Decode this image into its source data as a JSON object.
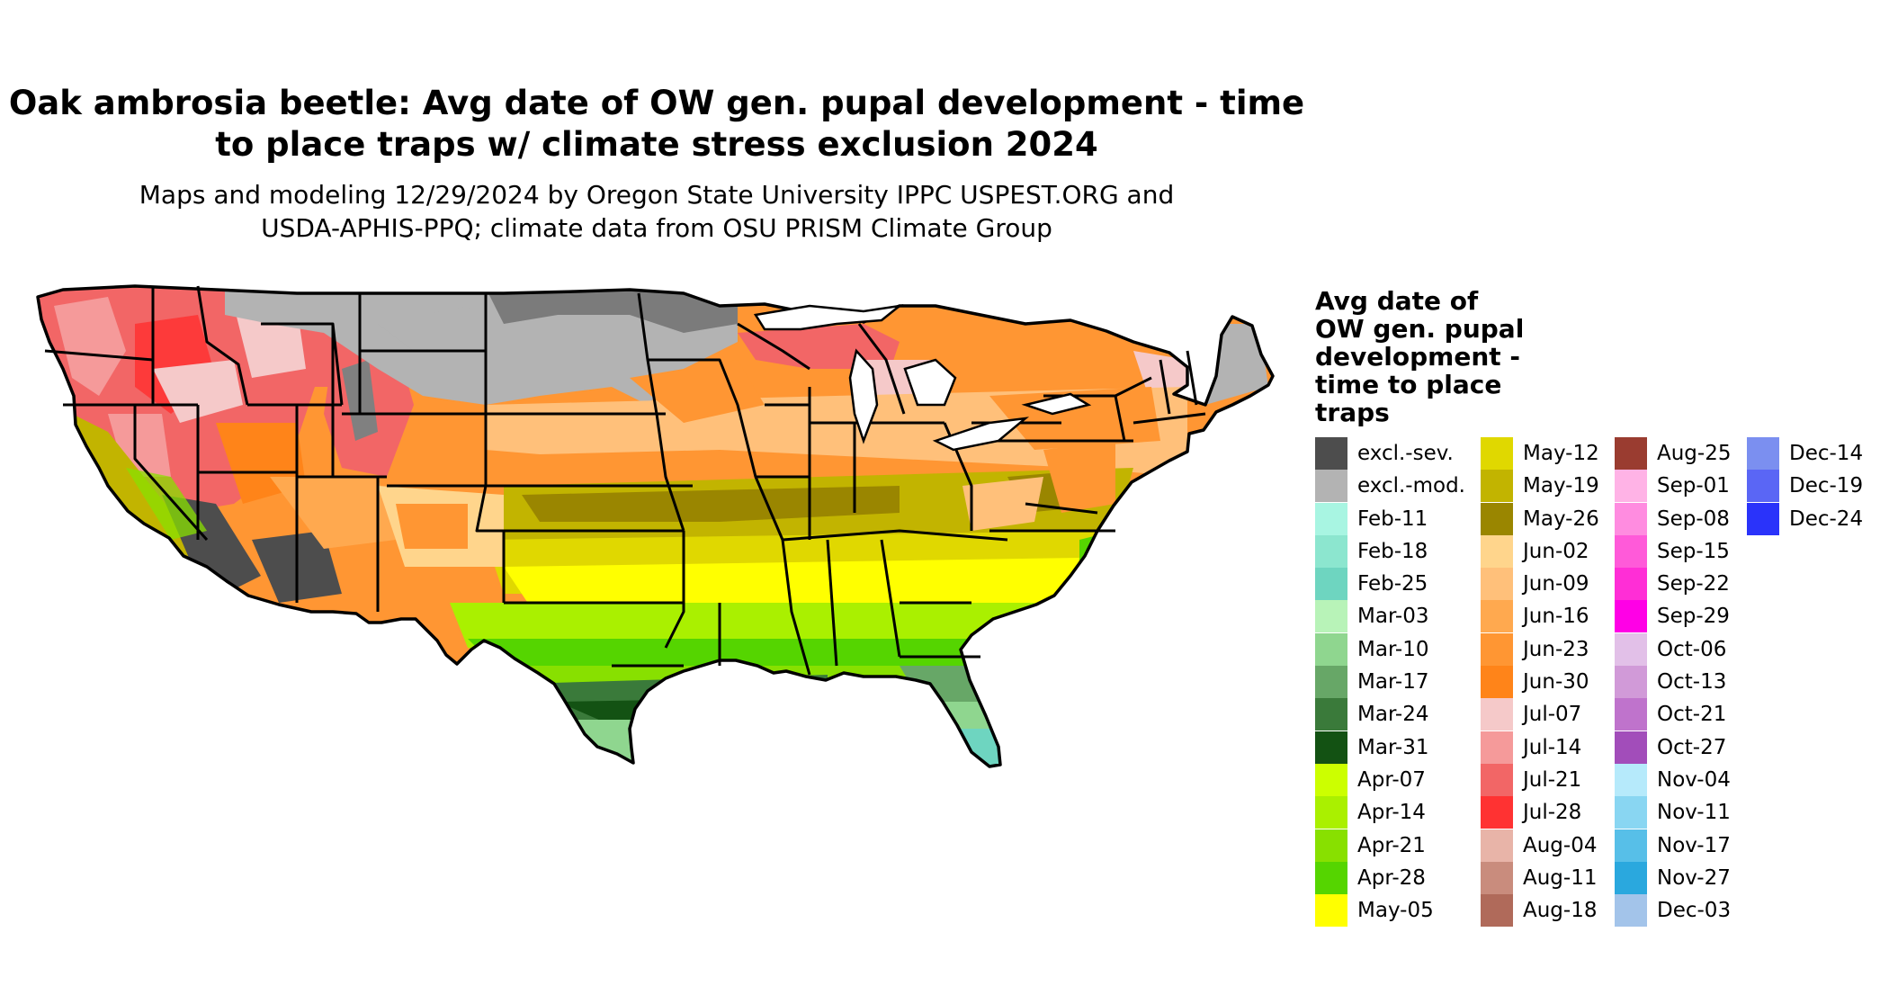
{
  "title_line1": "Oak ambrosia beetle: Avg date of OW gen. pupal development - time",
  "title_line2": "to place traps w/ climate stress exclusion 2024",
  "subtitle_line1": "Maps and modeling 12/29/2024 by Oregon State University IPPC USPEST.ORG and",
  "subtitle_line2": "USDA-APHIS-PPQ; climate data from OSU PRISM Climate Group",
  "legend": {
    "title_lines": [
      "Avg date of",
      "OW gen. pupal",
      "development -",
      "time to place",
      "traps"
    ],
    "columns": [
      [
        {
          "label": "excl.-sev.",
          "color": "#4d4d4d"
        },
        {
          "label": "excl.-mod.",
          "color": "#b3b3b3"
        },
        {
          "label": "Feb-11",
          "color": "#a8f5e2"
        },
        {
          "label": "Feb-18",
          "color": "#8ce6cf"
        },
        {
          "label": "Feb-25",
          "color": "#6ed5c0"
        },
        {
          "label": "Mar-03",
          "color": "#b8f3b8"
        },
        {
          "label": "Mar-10",
          "color": "#8fd68f"
        },
        {
          "label": "Mar-17",
          "color": "#67a767"
        },
        {
          "label": "Mar-24",
          "color": "#3a7a3a"
        },
        {
          "label": "Mar-31",
          "color": "#135213"
        },
        {
          "label": "Apr-07",
          "color": "#ccff00"
        },
        {
          "label": "Apr-14",
          "color": "#aaf000"
        },
        {
          "label": "Apr-21",
          "color": "#88e000"
        },
        {
          "label": "Apr-28",
          "color": "#55d500"
        },
        {
          "label": "May-05",
          "color": "#ffff00"
        }
      ],
      [
        {
          "label": "May-12",
          "color": "#e0d800"
        },
        {
          "label": "May-19",
          "color": "#c2b400"
        },
        {
          "label": "May-26",
          "color": "#9a8600"
        },
        {
          "label": "Jun-02",
          "color": "#ffd58c"
        },
        {
          "label": "Jun-09",
          "color": "#ffc07a"
        },
        {
          "label": "Jun-16",
          "color": "#ffa94f"
        },
        {
          "label": "Jun-23",
          "color": "#ff9633"
        },
        {
          "label": "Jun-30",
          "color": "#ff8419"
        },
        {
          "label": "Jul-07",
          "color": "#f5c9c9"
        },
        {
          "label": "Jul-14",
          "color": "#f59a9a"
        },
        {
          "label": "Jul-21",
          "color": "#f26666"
        },
        {
          "label": "Jul-28",
          "color": "#ff3232"
        },
        {
          "label": "Aug-04",
          "color": "#e8b4a8"
        },
        {
          "label": "Aug-11",
          "color": "#c98c7d"
        },
        {
          "label": "Aug-18",
          "color": "#b06a5a"
        }
      ],
      [
        {
          "label": "Aug-25",
          "color": "#9a3c30"
        },
        {
          "label": "Sep-01",
          "color": "#ffb3e6"
        },
        {
          "label": "Sep-08",
          "color": "#ff8ce0"
        },
        {
          "label": "Sep-15",
          "color": "#ff5ad9"
        },
        {
          "label": "Sep-22",
          "color": "#ff2ed6"
        },
        {
          "label": "Sep-29",
          "color": "#ff00e6"
        },
        {
          "label": "Oct-06",
          "color": "#e2c0e8"
        },
        {
          "label": "Oct-13",
          "color": "#d19ad8"
        },
        {
          "label": "Oct-21",
          "color": "#bf73cc"
        },
        {
          "label": "Oct-27",
          "color": "#a24dba"
        },
        {
          "label": "Nov-04",
          "color": "#b6eafb"
        },
        {
          "label": "Nov-11",
          "color": "#89d6f2"
        },
        {
          "label": "Nov-17",
          "color": "#57bfe8"
        },
        {
          "label": "Nov-27",
          "color": "#2aa8de"
        },
        {
          "label": "Dec-03",
          "color": "#a3c4ea"
        }
      ],
      [
        {
          "label": "Dec-14",
          "color": "#7b8ff0"
        },
        {
          "label": "Dec-19",
          "color": "#5a66f5"
        },
        {
          "label": "Dec-24",
          "color": "#2a33fa"
        }
      ]
    ]
  }
}
